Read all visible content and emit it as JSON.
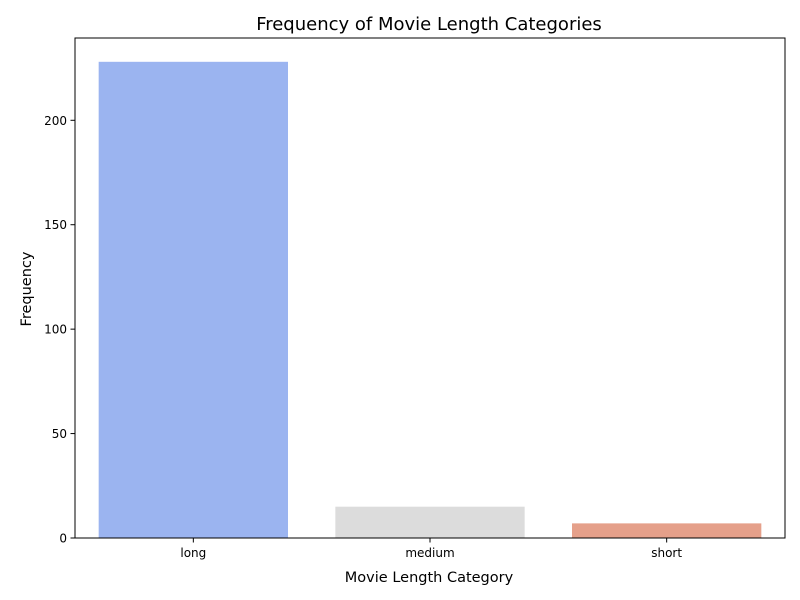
{
  "chart_data": {
    "type": "bar",
    "title": "Frequency of Movie Length Categories",
    "xlabel": "Movie Length Category",
    "ylabel": "Frequency",
    "categories": [
      "long",
      "medium",
      "short"
    ],
    "values": [
      228,
      15,
      7
    ],
    "colors": [
      "#9bb4f0",
      "#dcdcdc",
      "#e5a08a"
    ],
    "ylim": [
      0,
      239.4
    ],
    "yticks": [
      0,
      50,
      100,
      150,
      200
    ],
    "grid": false,
    "legend": "none"
  }
}
